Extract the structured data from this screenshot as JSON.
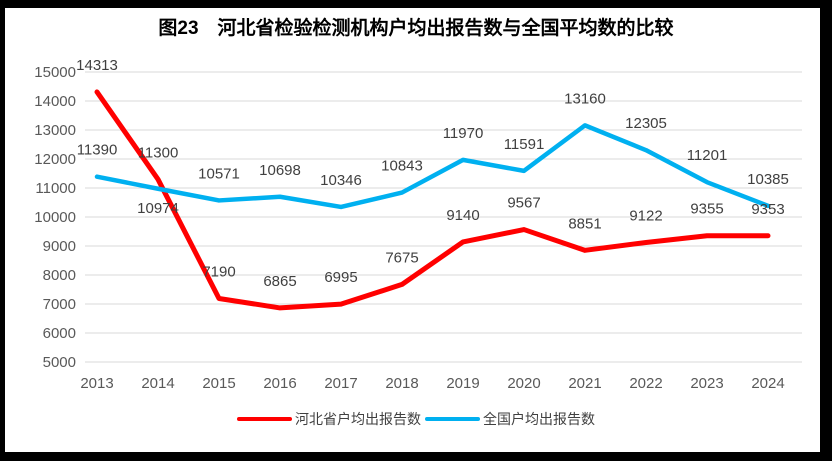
{
  "chart_data": {
    "type": "line",
    "title": "图23　河北省检验检测机构户均出报告数与全国平均数的比较",
    "categories": [
      "2013",
      "2014",
      "2015",
      "2016",
      "2017",
      "2018",
      "2019",
      "2020",
      "2021",
      "2022",
      "2023",
      "2024"
    ],
    "series": [
      {
        "name": "河北省户均出报告数",
        "color": "#FF0000",
        "values": [
          14313,
          11300,
          7190,
          6865,
          6995,
          7675,
          9140,
          9567,
          8851,
          9122,
          9355,
          9353
        ]
      },
      {
        "name": "全国户均出报告数",
        "color": "#00B0F0",
        "values": [
          11390,
          10974,
          10571,
          10698,
          10346,
          10843,
          11970,
          11591,
          13160,
          12305,
          11201,
          10385
        ]
      }
    ],
    "ylim": [
      5000,
      15000
    ],
    "ytick_step": 1000,
    "xlabel": "",
    "ylabel": "",
    "grid": true,
    "data_labels": true,
    "legend_position": "bottom",
    "label_below": [
      {
        "series": 1,
        "index": 1
      }
    ]
  },
  "colors": {
    "grid": "#D9D9D9",
    "axis_text": "#595959",
    "data_label_text": "#404040",
    "frame": "#000000",
    "background": "#FFFFFF"
  }
}
